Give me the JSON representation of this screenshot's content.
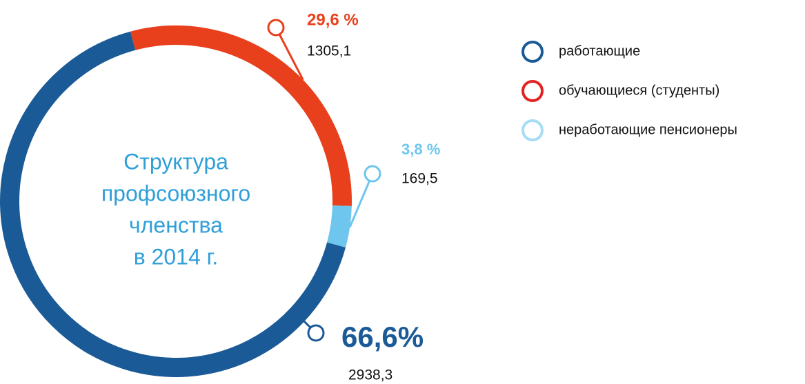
{
  "chart_data": {
    "type": "pie",
    "donut": true,
    "title_lines": [
      "Структура",
      "профсоюзного",
      "членства",
      "в 2014 г."
    ],
    "categories": [
      "обучающиеся (студенты)",
      "неработающие пенсионеры",
      "работающие"
    ],
    "values": [
      29.6,
      3.8,
      66.6
    ],
    "value_labels": [
      "29,6 %",
      "3,8 %",
      "66,6%"
    ],
    "counts": [
      1305.1,
      169.5,
      2938.3
    ],
    "count_labels": [
      "1305,1",
      "169,5",
      "2938,3"
    ],
    "colors": [
      "#e8401c",
      "#6ec6ee",
      "#1a5a96"
    ],
    "legend_order": [
      2,
      0,
      1
    ],
    "legend_colors": [
      "#e02424",
      "#a6dcf4",
      "#1a5a96"
    ]
  }
}
